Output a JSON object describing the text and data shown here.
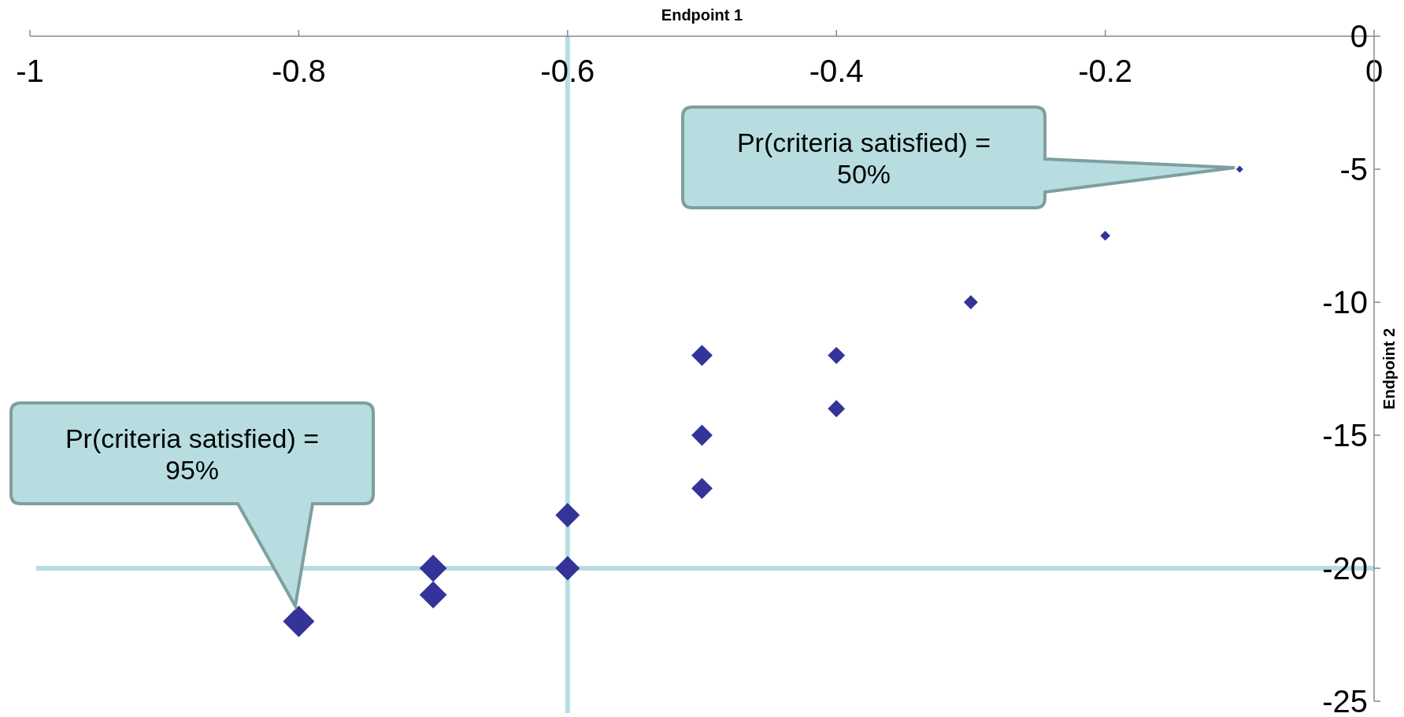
{
  "chart_data": {
    "type": "bubble",
    "xlabel": "Endpoint 1",
    "ylabel": "Endpoint 2",
    "marker": "diamond",
    "x": [
      -0.1,
      -0.2,
      -0.3,
      -0.4,
      -0.4,
      -0.5,
      -0.5,
      -0.5,
      -0.6,
      -0.6,
      -0.7,
      -0.7,
      -0.8
    ],
    "series": [
      {
        "color": "#333399",
        "values": [
          -5,
          -7.5,
          -10,
          -12,
          -14,
          -12,
          -15,
          -17,
          -18,
          -20,
          -20,
          -21,
          -22
        ],
        "sizes": [
          0.05,
          0.1,
          0.2,
          0.3,
          0.3,
          0.45,
          0.45,
          0.45,
          0.6,
          0.6,
          0.75,
          0.75,
          1
        ]
      }
    ],
    "xlim": [
      -1,
      0
    ],
    "xticks": [
      -1,
      -0.8,
      -0.6,
      -0.4,
      -0.2,
      0
    ],
    "ylim": [
      -25,
      0
    ],
    "yticks": [
      -25,
      -20,
      -15,
      -10,
      -5,
      0
    ],
    "ref_lines": [
      {
        "axis": "x",
        "value": -0.6,
        "color": "#b7dde1"
      },
      {
        "axis": "y",
        "value": -20,
        "color": "#b7dde1"
      }
    ],
    "annotations": [
      "Pr(criteria satisfied) = 95%",
      "Pr(criteria satisfied) = 50%"
    ]
  }
}
